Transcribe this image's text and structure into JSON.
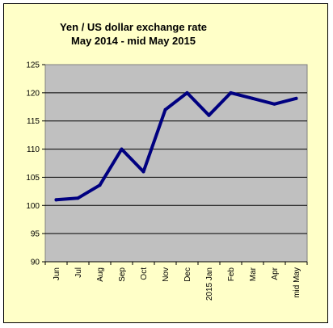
{
  "chart_data": {
    "type": "line",
    "title_lines": [
      "Yen / US dollar exchange rate",
      "May 2014 - mid May 2015"
    ],
    "categories": [
      "Jun",
      "Jul",
      "Aug",
      "Sep",
      "Oct",
      "Nov",
      "Dec",
      "2015 Jan",
      "Feb",
      "Mar",
      "Apr",
      "mid May"
    ],
    "series": [
      {
        "values": [
          101,
          101.3,
          103.6,
          110,
          106,
          117,
          120,
          116,
          120,
          119,
          118,
          119
        ]
      }
    ],
    "ylim": [
      90,
      125
    ],
    "yticks": [
      90,
      95,
      100,
      105,
      110,
      115,
      120,
      125
    ],
    "xlabel": "",
    "ylabel": "",
    "grid": true,
    "colors": {
      "frame_background": "#ffffc8",
      "plot_background": "#c0c0c0",
      "line": "#000080",
      "grid": "#000000"
    }
  }
}
